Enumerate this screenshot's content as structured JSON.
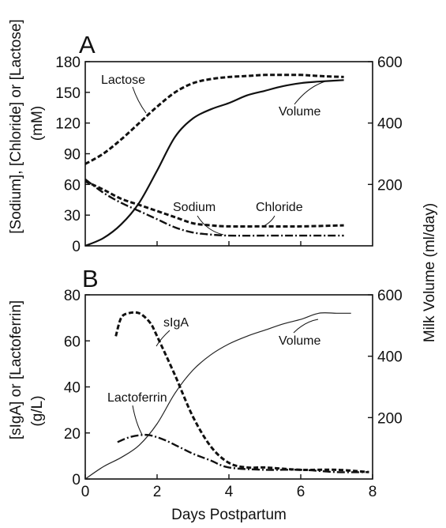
{
  "chart_data": [
    {
      "panel_label": "A",
      "type": "line",
      "x_range": [
        0,
        8
      ],
      "ylim_left": [
        0,
        180
      ],
      "ylim_right": [
        0,
        600
      ],
      "left_ticks": [
        "0",
        "30",
        "60",
        "90",
        "120",
        "150",
        "180"
      ],
      "right_ticks": [
        "200",
        "400",
        "600"
      ],
      "ylabel_left": "[Sodium], [Chloride] or [Lactose]",
      "ylabel_left_unit": "(mM)",
      "series": [
        {
          "name": "Lactose",
          "axis": "left",
          "style": "dashed",
          "x": [
            0,
            0.5,
            1,
            1.5,
            2,
            2.5,
            3,
            3.5,
            4,
            4.5,
            5,
            5.5,
            6,
            6.5,
            7.2
          ],
          "y": [
            80,
            90,
            104,
            120,
            136,
            150,
            159,
            163,
            165,
            166,
            167,
            167,
            167,
            166,
            165
          ]
        },
        {
          "name": "Volume",
          "axis": "right",
          "style": "solid",
          "x": [
            0,
            0.5,
            1,
            1.5,
            2,
            2.5,
            3,
            3.5,
            4,
            4.5,
            5,
            5.5,
            6,
            6.5,
            7.2
          ],
          "y": [
            0,
            25,
            70,
            140,
            245,
            355,
            415,
            445,
            465,
            490,
            505,
            520,
            530,
            535,
            540
          ]
        },
        {
          "name": "Sodium",
          "axis": "left",
          "style": "dashdot",
          "x": [
            0,
            0.5,
            1,
            1.5,
            2,
            2.5,
            3,
            3.5,
            4,
            5,
            6,
            7.2
          ],
          "y": [
            65,
            52,
            42,
            34,
            26,
            18,
            13,
            11,
            10,
            10,
            10,
            10
          ]
        },
        {
          "name": "Chloride",
          "axis": "left",
          "style": "dashed",
          "x": [
            0,
            0.5,
            1,
            1.5,
            2,
            2.5,
            3,
            3.5,
            4,
            5,
            6,
            7.2
          ],
          "y": [
            63,
            55,
            46,
            40,
            34,
            28,
            22,
            20,
            19,
            19,
            19,
            20
          ]
        }
      ]
    },
    {
      "panel_label": "B",
      "type": "line",
      "x_range": [
        0,
        8
      ],
      "ylim_left": [
        0,
        80
      ],
      "ylim_right": [
        0,
        600
      ],
      "left_ticks": [
        "0",
        "20",
        "40",
        "60",
        "80"
      ],
      "right_ticks": [
        "200",
        "400",
        "600"
      ],
      "x_ticks": [
        "0",
        "2",
        "4",
        "6",
        "8"
      ],
      "xlabel": "Days Postpartum",
      "ylabel_left": "[sIgA] or [Lactoferrin]",
      "ylabel_left_unit": "(g/L)",
      "series": [
        {
          "name": "Volume",
          "axis": "right",
          "style": "thin",
          "x": [
            0,
            0.5,
            1,
            1.5,
            2,
            2.5,
            3,
            3.5,
            4,
            4.5,
            5,
            5.5,
            6,
            6.5,
            7,
            7.4
          ],
          "y": [
            0,
            40,
            70,
            110,
            180,
            280,
            355,
            405,
            440,
            465,
            485,
            505,
            520,
            540,
            540,
            540
          ]
        },
        {
          "name": "sIgA",
          "axis": "left",
          "style": "dashed",
          "x": [
            0.85,
            1.0,
            1.2,
            1.5,
            1.8,
            2.0,
            2.5,
            3.0,
            3.5,
            4.0,
            4.5,
            5,
            6,
            7,
            7.9
          ],
          "y": [
            62,
            70,
            72,
            72,
            68,
            62,
            45,
            27,
            14,
            7,
            5,
            5,
            4,
            4,
            3
          ]
        },
        {
          "name": "Lactoferrin",
          "axis": "left",
          "style": "dashdot",
          "x": [
            0.9,
            1.2,
            1.5,
            1.8,
            2.2,
            2.6,
            3.0,
            3.5,
            4.0,
            5,
            6,
            7,
            7.9
          ],
          "y": [
            16,
            18,
            19,
            19,
            17,
            14,
            11,
            8,
            5,
            4,
            4,
            3,
            3
          ]
        }
      ]
    }
  ],
  "shared": {
    "ylabel_right": "Milk Volume (ml/day)"
  }
}
